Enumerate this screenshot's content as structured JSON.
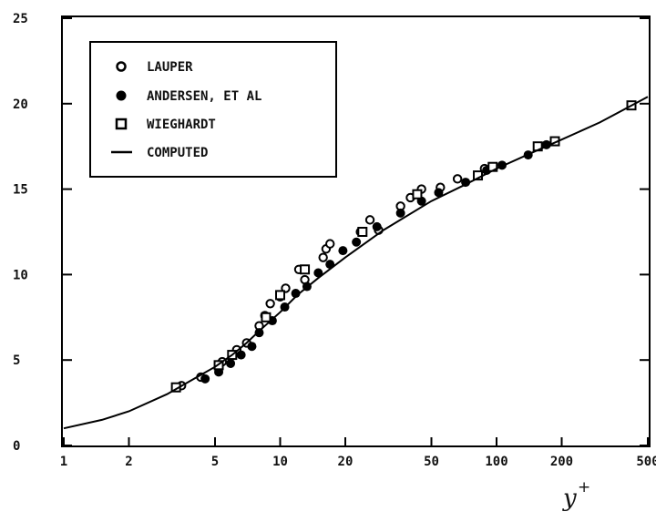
{
  "chart_data": {
    "type": "scatter",
    "title": "",
    "xlabel": "y",
    "xlabel_superscript": "+",
    "ylabel": "",
    "x_scale": "log",
    "xlim": [
      1,
      500
    ],
    "ylim": [
      0,
      25
    ],
    "x_ticks": [
      1,
      2,
      5,
      10,
      20,
      50,
      100,
      200,
      500
    ],
    "x_tick_labels": [
      "1",
      "2",
      "5",
      "10",
      "20",
      "50",
      "100",
      "200",
      "500"
    ],
    "y_ticks": [
      0,
      5,
      10,
      15,
      20,
      25
    ],
    "y_tick_labels": [
      "0",
      "5",
      "10",
      "15",
      "20",
      "25"
    ],
    "grid": false,
    "legend_position": "top-left",
    "series": [
      {
        "name": "LAUPER",
        "marker": "open-circle",
        "points": [
          [
            3.5,
            3.5
          ],
          [
            4.3,
            4.0
          ],
          [
            5.4,
            4.9
          ],
          [
            6.3,
            5.6
          ],
          [
            7.0,
            6.0
          ],
          [
            8.0,
            7.0
          ],
          [
            8.5,
            7.6
          ],
          [
            9.0,
            8.3
          ],
          [
            10.0,
            8.7
          ],
          [
            10.6,
            9.2
          ],
          [
            12.2,
            10.3
          ],
          [
            13.0,
            9.7
          ],
          [
            15.8,
            11.0
          ],
          [
            16.3,
            11.5
          ],
          [
            17.0,
            11.8
          ],
          [
            23.5,
            12.5
          ],
          [
            26.0,
            13.2
          ],
          [
            28.5,
            12.6
          ],
          [
            36.0,
            14.0
          ],
          [
            40.0,
            14.5
          ],
          [
            45.0,
            15.0
          ],
          [
            55.0,
            15.1
          ],
          [
            66.0,
            15.6
          ],
          [
            88.0,
            16.2
          ]
        ]
      },
      {
        "name": "ANDERSEN, ET AL",
        "marker": "filled-circle",
        "points": [
          [
            4.5,
            3.9
          ],
          [
            5.2,
            4.3
          ],
          [
            5.9,
            4.8
          ],
          [
            6.6,
            5.3
          ],
          [
            7.4,
            5.8
          ],
          [
            8.0,
            6.6
          ],
          [
            9.2,
            7.3
          ],
          [
            10.5,
            8.1
          ],
          [
            11.8,
            8.9
          ],
          [
            13.3,
            9.3
          ],
          [
            15.0,
            10.1
          ],
          [
            17.0,
            10.6
          ],
          [
            19.5,
            11.4
          ],
          [
            22.5,
            11.9
          ],
          [
            28.0,
            12.8
          ],
          [
            36.0,
            13.6
          ],
          [
            45.0,
            14.3
          ],
          [
            54.0,
            14.8
          ],
          [
            72.0,
            15.4
          ],
          [
            90.0,
            16.1
          ],
          [
            106.0,
            16.4
          ],
          [
            140.0,
            17.0
          ],
          [
            170.0,
            17.6
          ]
        ]
      },
      {
        "name": "WIEGHARDT",
        "marker": "open-square",
        "points": [
          [
            3.3,
            3.4
          ],
          [
            5.2,
            4.7
          ],
          [
            6.0,
            5.3
          ],
          [
            8.6,
            7.5
          ],
          [
            10.0,
            8.8
          ],
          [
            13.0,
            10.3
          ],
          [
            24.0,
            12.5
          ],
          [
            43.0,
            14.7
          ],
          [
            82.0,
            15.8
          ],
          [
            96.0,
            16.3
          ],
          [
            155.0,
            17.5
          ],
          [
            186.0,
            17.8
          ],
          [
            420.0,
            19.9
          ]
        ]
      },
      {
        "name": "COMPUTED",
        "marker": "line",
        "points": [
          [
            1,
            1.0
          ],
          [
            1.5,
            1.5
          ],
          [
            2,
            2.0
          ],
          [
            3,
            3.0
          ],
          [
            4,
            3.9
          ],
          [
            5,
            4.6
          ],
          [
            6,
            5.3
          ],
          [
            7,
            6.0
          ],
          [
            8,
            6.7
          ],
          [
            10,
            7.8
          ],
          [
            12,
            8.8
          ],
          [
            15,
            9.8
          ],
          [
            20,
            11.0
          ],
          [
            30,
            12.6
          ],
          [
            50,
            14.3
          ],
          [
            70,
            15.2
          ],
          [
            100,
            16.2
          ],
          [
            150,
            17.2
          ],
          [
            200,
            17.9
          ],
          [
            300,
            18.9
          ],
          [
            500,
            20.4
          ]
        ]
      }
    ]
  }
}
